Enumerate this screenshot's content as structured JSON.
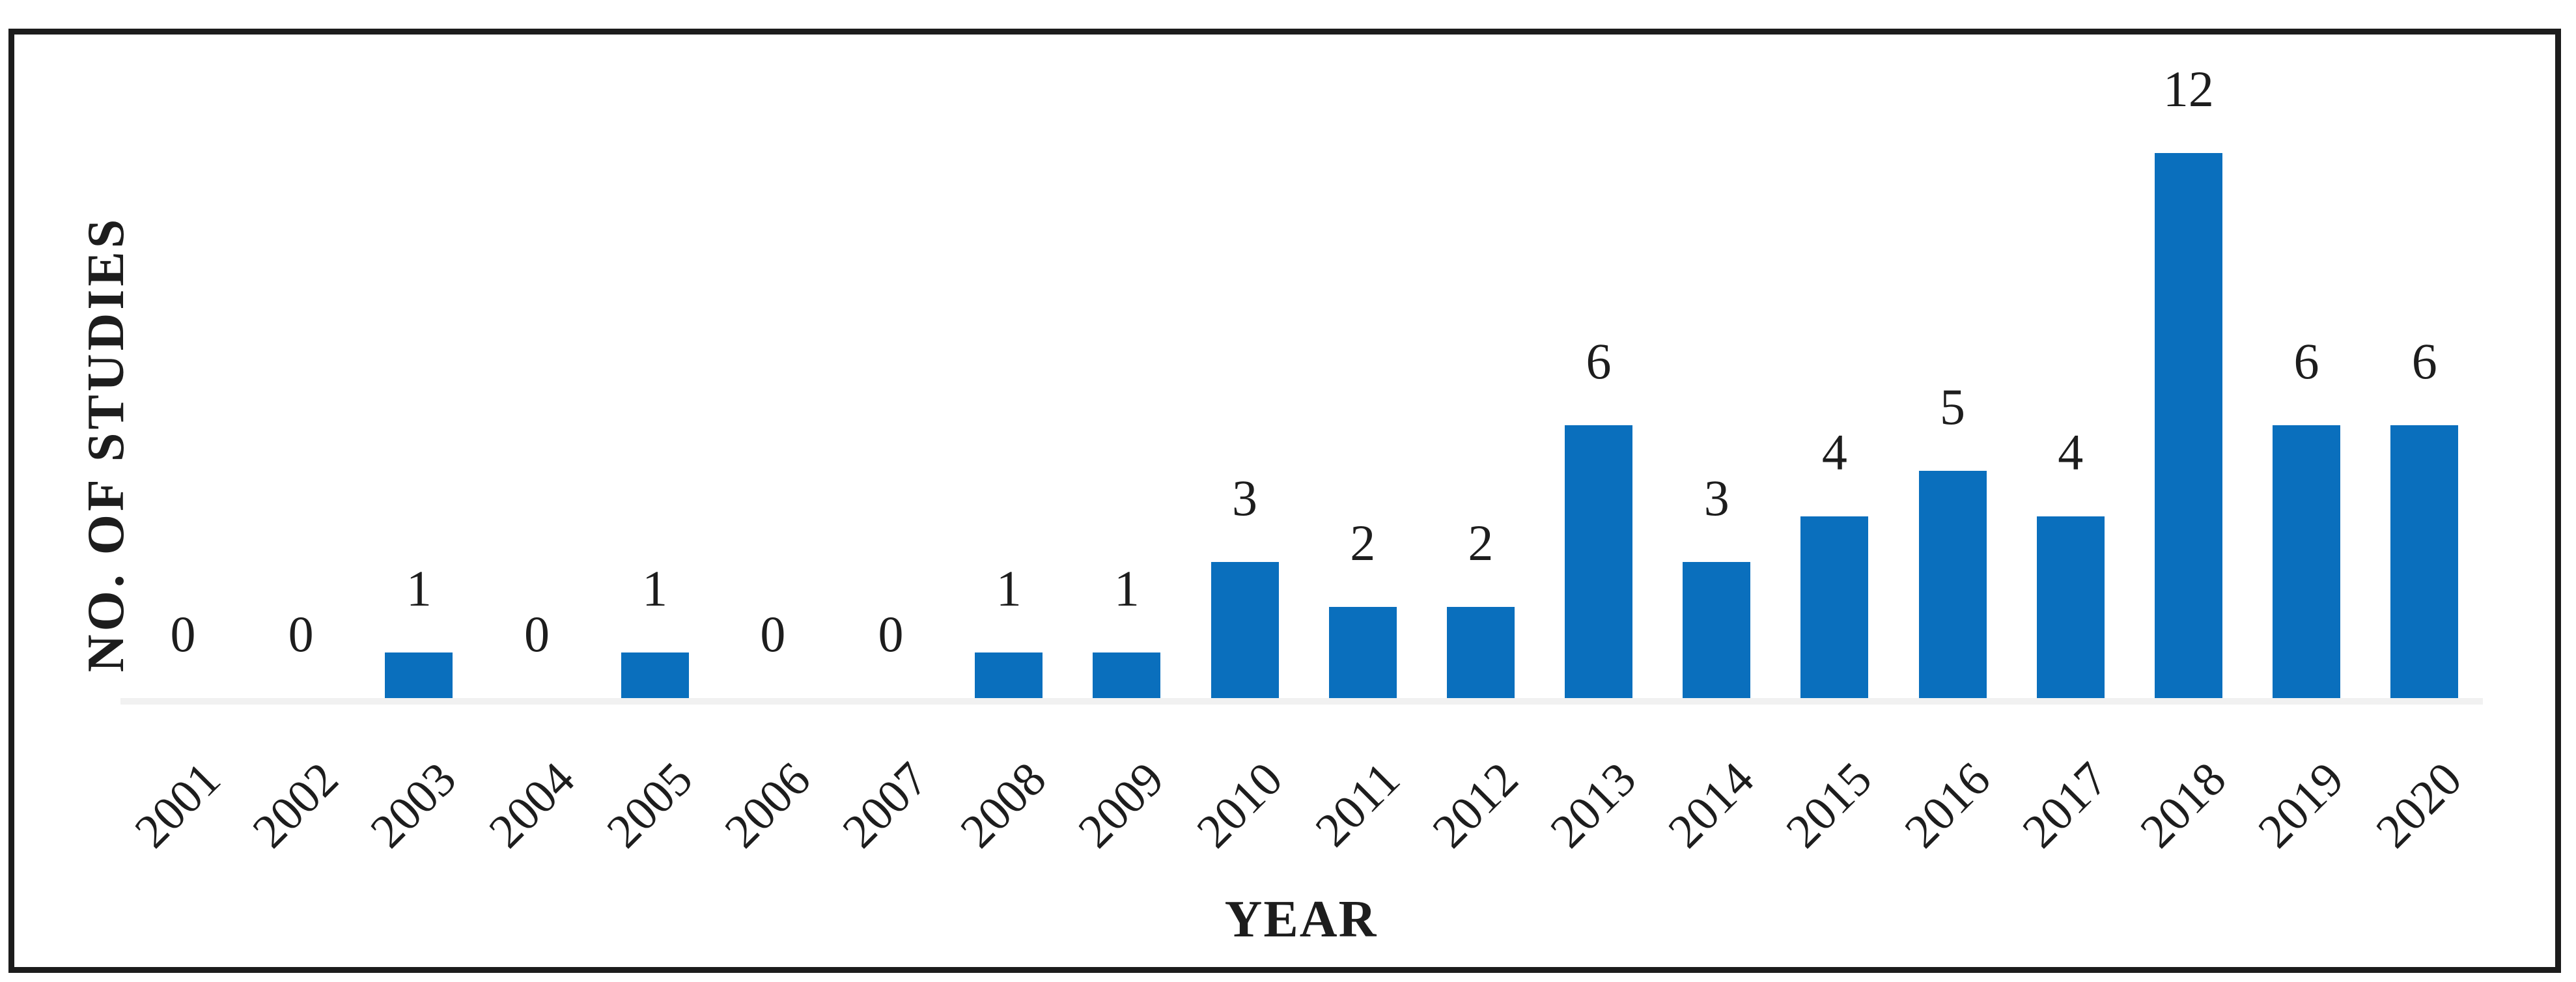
{
  "chart_data": {
    "type": "bar",
    "title": "",
    "xlabel": "YEAR",
    "ylabel": "NO. OF STUDIES",
    "categories": [
      "2001",
      "2002",
      "2003",
      "2004",
      "2005",
      "2006",
      "2007",
      "2008",
      "2009",
      "2010",
      "2011",
      "2012",
      "2013",
      "2014",
      "2015",
      "2016",
      "2017",
      "2018",
      "2019",
      "2020"
    ],
    "values": [
      0,
      0,
      1,
      0,
      1,
      0,
      0,
      1,
      1,
      3,
      2,
      2,
      6,
      3,
      4,
      5,
      4,
      12,
      6,
      6
    ],
    "ylim": [
      0,
      12
    ],
    "grid": false,
    "legend_position": "none",
    "data_labels": true,
    "bar_color": "#0a6fbd",
    "axis_line_color": "#f1f1f1",
    "text_color": "#1d1d1d",
    "frame_color": "#1c1c1c"
  }
}
